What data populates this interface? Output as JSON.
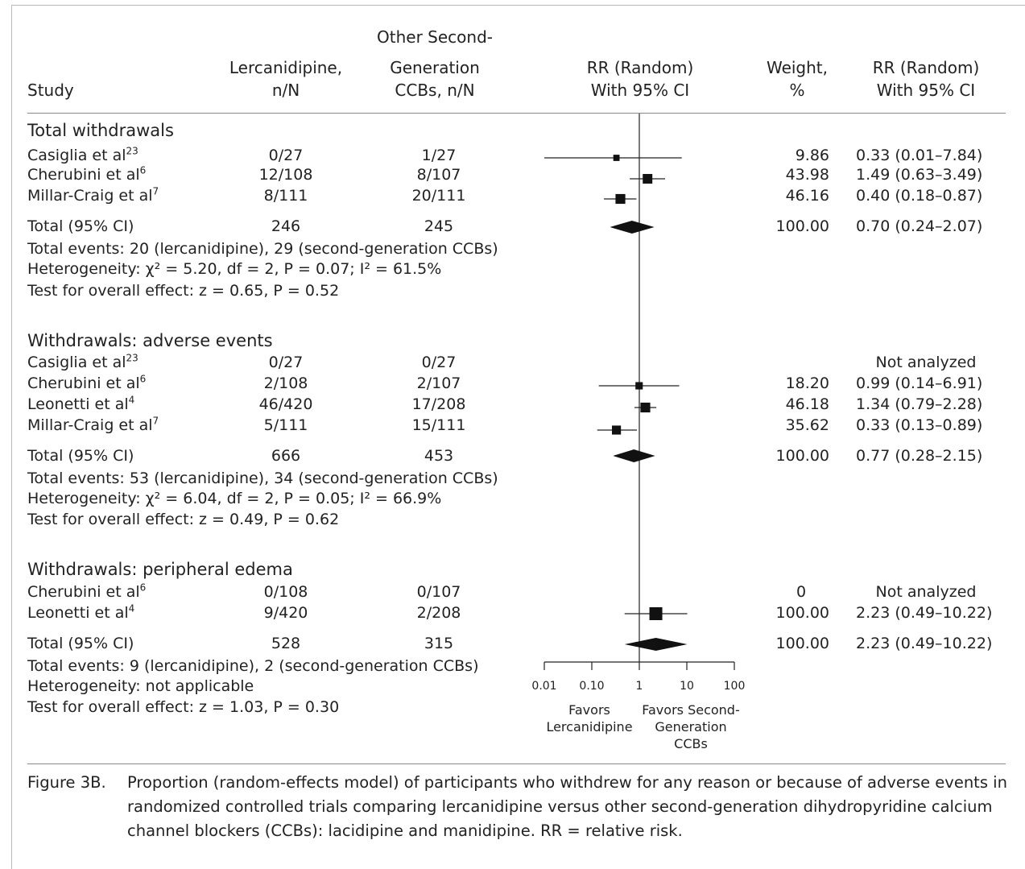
{
  "header": {
    "study": "Study",
    "lerc_line1": "Lercanidipine,",
    "lerc_line2": "n/N",
    "other_line1": "Other Second-",
    "other_line2": "Generation",
    "other_line3": "CCBs, n/N",
    "rr_line1": "RR (Random)",
    "rr_line2": "With 95% CI",
    "weight_line1": "Weight,",
    "weight_line2": "%",
    "rr2_line1": "RR (Random)",
    "rr2_line2": "With 95% CI"
  },
  "groups": [
    {
      "title": "Total withdrawals",
      "rows": [
        {
          "study": "Casiglia et al",
          "ref": "23",
          "lerc": "0/27",
          "other": "1/27",
          "weight": "9.86",
          "ci_text": "0.33 (0.01–7.84)"
        },
        {
          "study": "Cherubini et al",
          "ref": "6",
          "lerc": "12/108",
          "other": "8/107",
          "weight": "43.98",
          "ci_text": "1.49 (0.63–3.49)"
        },
        {
          "study": "Millar-Craig et al",
          "ref": "7",
          "lerc": "8/111",
          "other": "20/111",
          "weight": "46.16",
          "ci_text": "0.40 (0.18–0.87)"
        }
      ],
      "total": {
        "label": "Total (95% CI)",
        "lerc": "246",
        "other": "245",
        "weight": "100.00",
        "ci_text": "0.70 (0.24–2.07)"
      },
      "events": "Total events: 20 (lercanidipine), 29 (second-generation CCBs)",
      "heterogeneity": "Heterogeneity: χ² = 5.20, df = 2, P = 0.07; I² = 61.5%",
      "overall": "Test for overall effect: z = 0.65, P = 0.52"
    },
    {
      "title": "Withdrawals: adverse events",
      "rows": [
        {
          "study": "Casiglia et al",
          "ref": "23",
          "lerc": "0/27",
          "other": "0/27",
          "weight": "",
          "ci_text": "Not analyzed"
        },
        {
          "study": "Cherubini et al",
          "ref": "6",
          "lerc": "2/108",
          "other": "2/107",
          "weight": "18.20",
          "ci_text": "0.99 (0.14–6.91)"
        },
        {
          "study": "Leonetti et al",
          "ref": "4",
          "lerc": "46/420",
          "other": "17/208",
          "weight": "46.18",
          "ci_text": "1.34 (0.79–2.28)"
        },
        {
          "study": "Millar-Craig et al",
          "ref": "7",
          "lerc": "5/111",
          "other": "15/111",
          "weight": "35.62",
          "ci_text": "0.33 (0.13–0.89)"
        }
      ],
      "total": {
        "label": "Total (95% CI)",
        "lerc": "666",
        "other": "453",
        "weight": "100.00",
        "ci_text": "0.77 (0.28–2.15)"
      },
      "events": "Total events: 53 (lercanidipine), 34 (second-generation CCBs)",
      "heterogeneity": "Heterogeneity: χ² = 6.04, df = 2, P = 0.05; I² = 66.9%",
      "overall": "Test for overall effect: z = 0.49, P = 0.62"
    },
    {
      "title": "Withdrawals: peripheral edema",
      "rows": [
        {
          "study": "Cherubini et al",
          "ref": "6",
          "lerc": "0/108",
          "other": "0/107",
          "weight": "0",
          "ci_text": "Not analyzed"
        },
        {
          "study": "Leonetti et al",
          "ref": "4",
          "lerc": "9/420",
          "other": "2/208",
          "weight": "100.00",
          "ci_text": "2.23 (0.49–10.22)"
        }
      ],
      "total": {
        "label": "Total (95% CI)",
        "lerc": "528",
        "other": "315",
        "weight": "100.00",
        "ci_text": "2.23 (0.49–10.22)"
      },
      "events": "Total events: 9 (lercanidipine), 2 (second-generation CCBs)",
      "heterogeneity": "Heterogeneity: not applicable",
      "overall": "Test for overall effect: z = 1.03, P = 0.30"
    }
  ],
  "axis": {
    "ticks": [
      "0.01",
      "0.10",
      "1",
      "10",
      "100"
    ],
    "favors_left": [
      "Favors",
      "Lercanidipine"
    ],
    "favors_right": [
      "Favors Second-",
      "Generation",
      "CCBs"
    ]
  },
  "caption": {
    "label": "Figure 3B.",
    "text": "Proportion (random-effects model) of participants who withdrew for any reason or because of adverse events in randomized controlled trials comparing lercanidipine versus other second-generation dihydropyridine calcium channel blockers (CCBs): lacidipine and manidipine. RR = relative risk."
  },
  "chart_data": {
    "type": "forest",
    "x_scale": "log",
    "xlim": [
      0.01,
      100
    ],
    "reference_line": 1,
    "title": "",
    "xlabel": "",
    "studies": [
      {
        "group": "Total withdrawals",
        "study": "Casiglia et al",
        "rr": 0.33,
        "lo": 0.01,
        "hi": 7.84,
        "weight": 9.86
      },
      {
        "group": "Total withdrawals",
        "study": "Cherubini et al",
        "rr": 1.49,
        "lo": 0.63,
        "hi": 3.49,
        "weight": 43.98
      },
      {
        "group": "Total withdrawals",
        "study": "Millar-Craig et al",
        "rr": 0.4,
        "lo": 0.18,
        "hi": 0.87,
        "weight": 46.16
      },
      {
        "group": "Withdrawals: adverse events",
        "study": "Cherubini et al",
        "rr": 0.99,
        "lo": 0.14,
        "hi": 6.91,
        "weight": 18.2
      },
      {
        "group": "Withdrawals: adverse events",
        "study": "Leonetti et al",
        "rr": 1.34,
        "lo": 0.79,
        "hi": 2.28,
        "weight": 46.18
      },
      {
        "group": "Withdrawals: adverse events",
        "study": "Millar-Craig et al",
        "rr": 0.33,
        "lo": 0.13,
        "hi": 0.89,
        "weight": 35.62
      },
      {
        "group": "Withdrawals: peripheral edema",
        "study": "Leonetti et al",
        "rr": 2.23,
        "lo": 0.49,
        "hi": 10.22,
        "weight": 100.0
      }
    ],
    "totals": [
      {
        "group": "Total withdrawals",
        "rr": 0.7,
        "lo": 0.24,
        "hi": 2.07
      },
      {
        "group": "Withdrawals: adverse events",
        "rr": 0.77,
        "lo": 0.28,
        "hi": 2.15
      },
      {
        "group": "Withdrawals: peripheral edema",
        "rr": 2.23,
        "lo": 0.49,
        "hi": 10.22
      }
    ]
  }
}
